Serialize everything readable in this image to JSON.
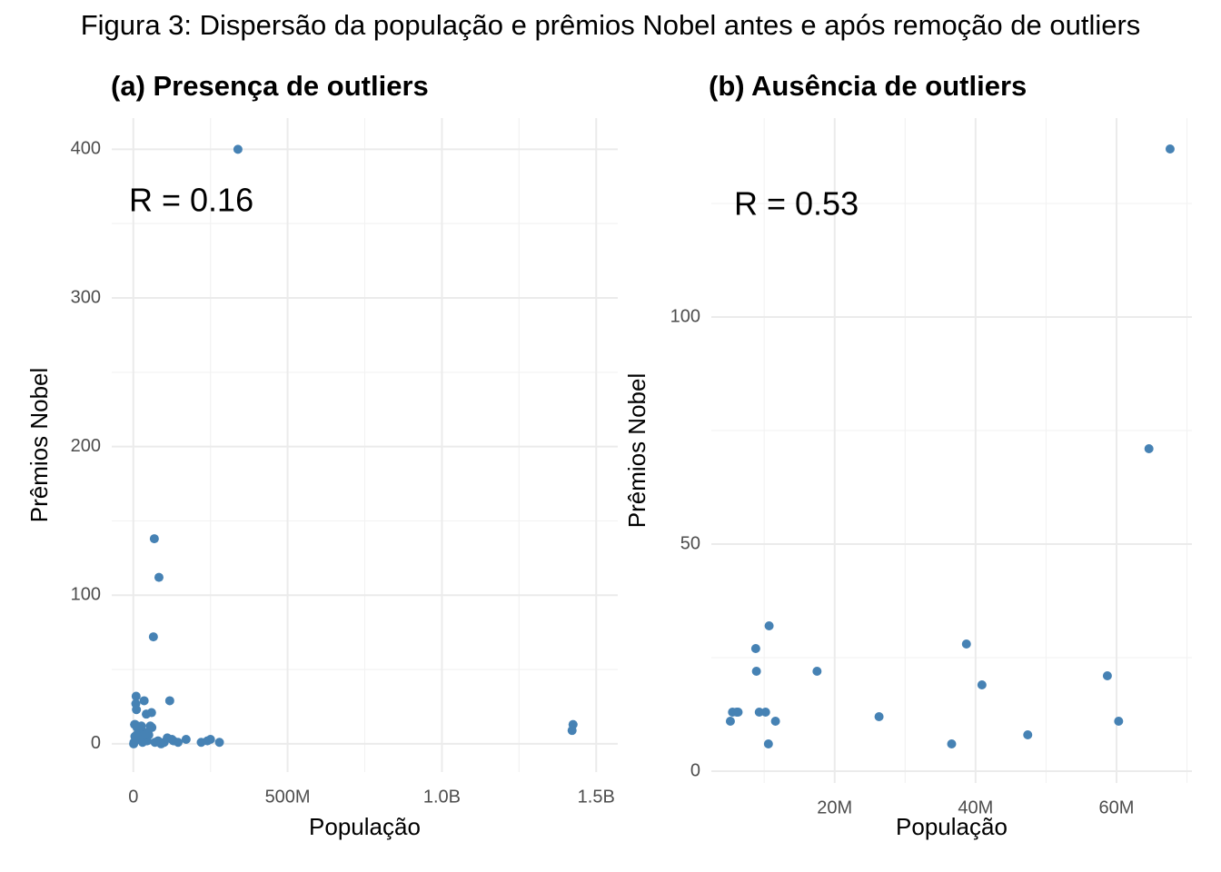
{
  "title": "Figura 3: Dispersão da população e prêmios Nobel antes e após remoção de outliers",
  "chart_data": [
    {
      "type": "scatter",
      "title": "(a) Presença de outliers",
      "x_label": "População",
      "y_label": "Prêmios Nobel",
      "annotation": "R = 0.16",
      "color": "#4682b4",
      "grid": true,
      "xlim": [
        -70000000,
        1570000000
      ],
      "ylim": [
        -19,
        421
      ],
      "xticks": [
        0,
        {
          "value": 500000000,
          "label": "500M"
        },
        {
          "value": 1000000000,
          "label": "1.0B"
        },
        {
          "value": 1500000000,
          "label": "1.5B"
        }
      ],
      "yticks": [
        0,
        100,
        200,
        300,
        400
      ],
      "x": [
        339000000,
        68000000,
        83000000,
        65000000,
        1425000000,
        1422000000,
        118000000,
        9000000,
        8000000,
        10000000,
        35000000,
        42000000,
        59000000,
        55000000,
        25000000,
        171000000,
        220000000,
        240000000,
        250000000,
        279000000,
        130000000,
        145000000,
        110000000,
        125000000,
        100000000,
        4000000,
        6000000,
        2000000,
        5000000,
        15000000,
        20000000,
        30000000,
        45000000,
        50000000,
        70000000,
        80000000,
        90000000,
        38000000,
        47000000,
        60000000,
        26000000,
        36000000,
        11000000,
        12000000,
        1000000
      ],
      "values": [
        400,
        138,
        112,
        72,
        13,
        9,
        29,
        32,
        27,
        23,
        29,
        20,
        21,
        12,
        10,
        3,
        1,
        2,
        3,
        1,
        2,
        1,
        4,
        3,
        1,
        13,
        13,
        1,
        5,
        3,
        7,
        1,
        2,
        6,
        1,
        2,
        0,
        6,
        8,
        11,
        12,
        6,
        6,
        11,
        0
      ]
    },
    {
      "type": "scatter",
      "title": "(b) Ausência de outliers",
      "x_label": "População",
      "y_label": "Prêmios Nobel",
      "annotation": "R = 0.53",
      "color": "#4682b4",
      "grid": true,
      "xlim": [
        2500000,
        70700000
      ],
      "ylim": [
        -2.6,
        143.8
      ],
      "xticks": [
        {
          "value": 20000000,
          "label": "20M"
        },
        {
          "value": 40000000,
          "label": "40M"
        },
        {
          "value": 60000000,
          "label": "60M"
        }
      ],
      "yticks": [
        0,
        50,
        100
      ],
      "x": [
        67600000,
        64600000,
        10700000,
        8800000,
        8900000,
        17500000,
        38700000,
        40900000,
        58700000,
        60300000,
        47400000,
        26300000,
        36600000,
        10600000,
        11600000,
        9300000,
        10200000,
        5200000,
        5500000,
        6100000,
        6300000
      ],
      "values": [
        137,
        71,
        32,
        27,
        22,
        22,
        28,
        19,
        21,
        11,
        8,
        12,
        6,
        6,
        11,
        13,
        13,
        11,
        13,
        13,
        13
      ]
    }
  ]
}
